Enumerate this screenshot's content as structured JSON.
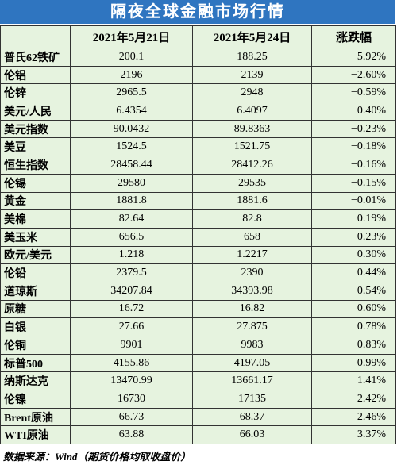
{
  "header": {
    "title": "隔夜全球金融市场行情"
  },
  "table": {
    "columns": [
      "",
      "2021年5月21日",
      "2021年5月24日",
      "涨跌幅"
    ],
    "rows": [
      [
        "普氏62铁矿",
        "200.1",
        "188.25",
        "−5.92%"
      ],
      [
        "伦铝",
        "2196",
        "2139",
        "−2.60%"
      ],
      [
        "伦锌",
        "2965.5",
        "2948",
        "−0.59%"
      ],
      [
        "美元/人民",
        "6.4354",
        "6.4097",
        "−0.40%"
      ],
      [
        "美元指数",
        "90.0432",
        "89.8363",
        "−0.23%"
      ],
      [
        "美豆",
        "1524.5",
        "1521.75",
        "−0.18%"
      ],
      [
        "恒生指数",
        "28458.44",
        "28412.26",
        "−0.16%"
      ],
      [
        "伦锡",
        "29580",
        "29535",
        "−0.15%"
      ],
      [
        "黄金",
        "1881.8",
        "1881.6",
        "−0.01%"
      ],
      [
        "美棉",
        "82.64",
        "82.8",
        "0.19%"
      ],
      [
        "美玉米",
        "656.5",
        "658",
        "0.23%"
      ],
      [
        "欧元/美元",
        "1.218",
        "1.2217",
        "0.30%"
      ],
      [
        "伦铅",
        "2379.5",
        "2390",
        "0.44%"
      ],
      [
        "道琼斯",
        "34207.84",
        "34393.98",
        "0.54%"
      ],
      [
        "原糖",
        "16.72",
        "16.82",
        "0.60%"
      ],
      [
        "白银",
        "27.66",
        "27.875",
        "0.78%"
      ],
      [
        "伦铜",
        "9901",
        "9983",
        "0.83%"
      ],
      [
        "标普500",
        "4155.86",
        "4197.05",
        "0.99%"
      ],
      [
        "纳斯达克",
        "13470.99",
        "13661.17",
        "1.41%"
      ],
      [
        "伦镍",
        "16730",
        "17135",
        "2.42%"
      ],
      [
        "Brent原油",
        "66.73",
        "68.37",
        "2.46%"
      ],
      [
        "WTI原油",
        "63.88",
        "66.03",
        "3.37%"
      ]
    ]
  },
  "footer": {
    "source": "数据来源：Wind（期货价格均取收盘价）"
  }
}
